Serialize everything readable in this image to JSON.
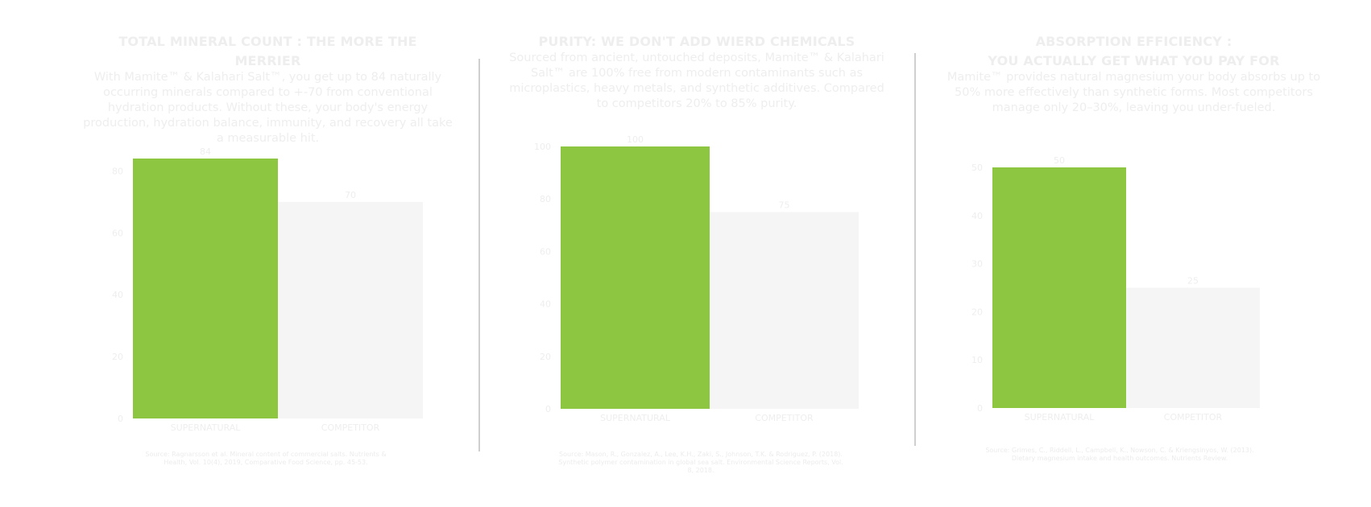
{
  "colors": {
    "supernatural": "#8dc641",
    "competitor": "#f5f5f5",
    "text": "#eeeeee",
    "divider": "#cfcfcf"
  },
  "panels": [
    {
      "title_lines": [
        "TOTAL MINERAL COUNT : THE MORE THE",
        "MERRIER"
      ],
      "description": "With Mamite™ & Kalahari Salt™, you get up to 84 naturally occurring minerals compared to +-70 from conventional hydration products. Without these, your body's energy production, hydration balance, immunity, and recovery all take a measurable hit.",
      "source": "Source: Ragnarsson et al. Mineral content of commercial salts. Nutrients & Health, Vol. 10(4), 2019, Comparative Food Science, pp. 45-53.",
      "chart_data": {
        "type": "bar",
        "categories": [
          "SUPERNATURAL",
          "COMPETITOR"
        ],
        "values": [
          84,
          70
        ],
        "value_labels": [
          "84",
          "70"
        ],
        "yticks": [
          0,
          20,
          40,
          60,
          80
        ],
        "ylim": [
          0,
          84
        ],
        "colors": [
          "#8dc641",
          "#f5f5f5"
        ]
      }
    },
    {
      "title_lines": [
        "PURITY: WE DON'T ADD WIERD CHEMICALS"
      ],
      "description": "Sourced from ancient, untouched deposits, Mamite™ & Kalahari Salt™ are 100% free from modern contaminants such as microplastics, heavy metals, and synthetic additives. Compared to competitors 20% to 85% purity.",
      "source": "Source: Mason, R., Gonzalez, A., Lee, K.H., Zaki, S., Johnson, T.K. & Rodriguez, P. (2018). Synthetic polymer contamination in global sea salt. Environmental Science Reports, Vol. 8, 2018.",
      "chart_data": {
        "type": "bar",
        "categories": [
          "SUPERNATURAL",
          "COMPETITOR"
        ],
        "values": [
          100,
          75
        ],
        "value_labels": [
          "100",
          "75"
        ],
        "yticks": [
          0,
          20,
          40,
          60,
          80,
          100
        ],
        "ylim": [
          0,
          100
        ],
        "colors": [
          "#8dc641",
          "#f5f5f5"
        ]
      }
    },
    {
      "title_lines": [
        "ABSORPTION EFFICIENCY :",
        "YOU ACTUALLY GET WHAT YOU PAY FOR"
      ],
      "description": "Mamite™ provides natural magnesium your body absorbs up to 50% more effectively than synthetic forms. Most competitors manage only 20–30%, leaving you under-fueled.",
      "source": "Source: Grimes, C., Riddell, L., Campbell, K., Nowson, C. & Kriengsinyos, W. (2013). Dietary magnesium intake and health outcomes. Nutrients Review.",
      "chart_data": {
        "type": "bar",
        "categories": [
          "SUPERNATURAL",
          "COMPETITOR"
        ],
        "values": [
          50,
          25
        ],
        "value_labels": [
          "50",
          "25"
        ],
        "yticks": [
          0,
          10,
          20,
          30,
          40,
          50
        ],
        "ylim": [
          0,
          50
        ],
        "colors": [
          "#8dc641",
          "#f5f5f5"
        ]
      }
    }
  ]
}
